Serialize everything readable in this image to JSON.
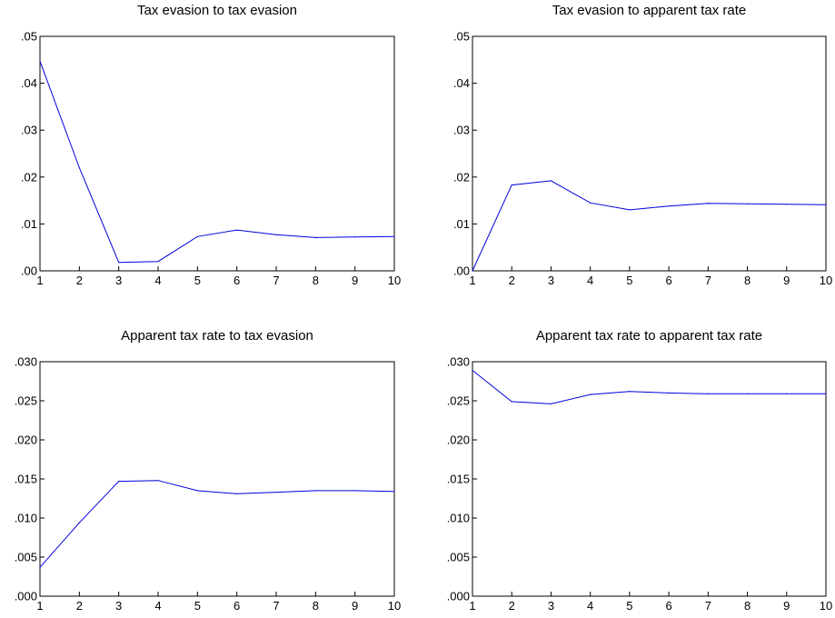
{
  "chart_data": [
    {
      "type": "line",
      "title": "Tax evasion to tax evasion",
      "x": [
        1,
        2,
        3,
        4,
        5,
        6,
        7,
        8,
        9,
        10
      ],
      "xtick_labels": [
        "1",
        "2",
        "3",
        "4",
        "5",
        "6",
        "7",
        "8",
        "9",
        "10"
      ],
      "series": [
        {
          "values": [
            0.0447,
            0.022,
            0.0018,
            0.002,
            0.0073,
            0.0087,
            0.0077,
            0.0071,
            0.0072,
            0.0073
          ]
        }
      ],
      "ylim": [
        0,
        0.05
      ],
      "yticks": [
        0,
        0.01,
        0.02,
        0.03,
        0.04,
        0.05
      ],
      "ytick_labels": [
        ".00",
        ".01",
        ".02",
        ".03",
        ".04",
        ".05"
      ],
      "color": "#0000dd",
      "grid": false
    },
    {
      "type": "line",
      "title": "Tax evasion to apparent tax rate",
      "x": [
        1,
        2,
        3,
        4,
        5,
        6,
        7,
        8,
        9,
        10
      ],
      "xtick_labels": [
        "1",
        "2",
        "3",
        "4",
        "5",
        "6",
        "7",
        "8",
        "9",
        "10"
      ],
      "series": [
        {
          "values": [
            0.0,
            0.0183,
            0.0192,
            0.0145,
            0.013,
            0.0138,
            0.0144,
            0.0143,
            0.0142,
            0.0141
          ]
        }
      ],
      "ylim": [
        0,
        0.05
      ],
      "yticks": [
        0,
        0.01,
        0.02,
        0.03,
        0.04,
        0.05
      ],
      "ytick_labels": [
        ".00",
        ".01",
        ".02",
        ".03",
        ".04",
        ".05"
      ],
      "color": "#0000dd",
      "grid": false
    },
    {
      "type": "line",
      "title": "Apparent tax rate  to tax evasion",
      "x": [
        1,
        2,
        3,
        4,
        5,
        6,
        7,
        8,
        9,
        10
      ],
      "xtick_labels": [
        "1",
        "2",
        "3",
        "4",
        "5",
        "6",
        "7",
        "8",
        "9",
        "10"
      ],
      "series": [
        {
          "values": [
            0.0037,
            0.0094,
            0.0147,
            0.0148,
            0.0135,
            0.0131,
            0.0133,
            0.0135,
            0.0135,
            0.0134
          ]
        }
      ],
      "ylim": [
        0,
        0.03
      ],
      "yticks": [
        0,
        0.005,
        0.01,
        0.015,
        0.02,
        0.025,
        0.03
      ],
      "ytick_labels": [
        ".000",
        ".005",
        ".010",
        ".015",
        ".020",
        ".025",
        ".030"
      ],
      "color": "#0000dd",
      "grid": false
    },
    {
      "type": "line",
      "title": "Apparent tax rate  to apparent tax rate",
      "x": [
        1,
        2,
        3,
        4,
        5,
        6,
        7,
        8,
        9,
        10
      ],
      "xtick_labels": [
        "1",
        "2",
        "3",
        "4",
        "5",
        "6",
        "7",
        "8",
        "9",
        "10"
      ],
      "series": [
        {
          "values": [
            0.0289,
            0.0249,
            0.0246,
            0.0258,
            0.0262,
            0.026,
            0.0259,
            0.0259,
            0.0259,
            0.0259
          ]
        }
      ],
      "ylim": [
        0,
        0.03
      ],
      "yticks": [
        0,
        0.005,
        0.01,
        0.015,
        0.02,
        0.025,
        0.03
      ],
      "ytick_labels": [
        ".000",
        ".005",
        ".010",
        ".015",
        ".020",
        ".025",
        ".030"
      ],
      "color": "#0000dd",
      "grid": false
    }
  ]
}
